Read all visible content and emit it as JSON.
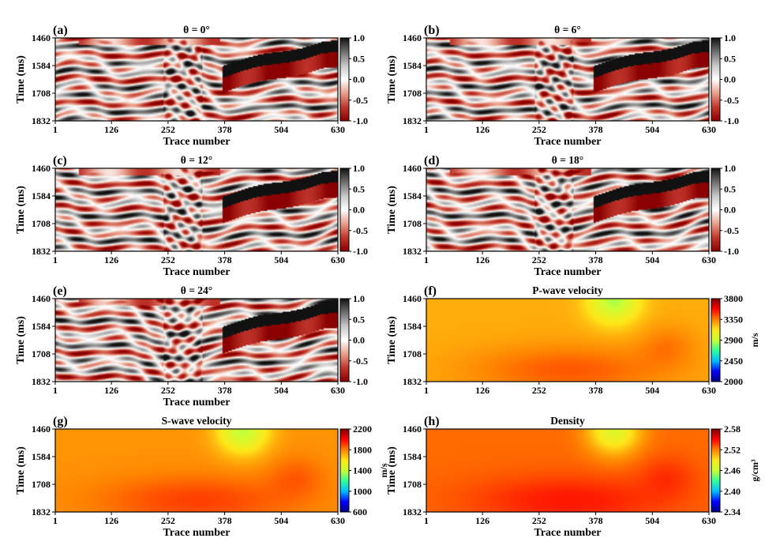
{
  "figure": {
    "panels_note": "8 panels: 5 seismic angle gathers and 3 elastic models"
  },
  "colors": {
    "seismic_colormap": [
      "#8b0000",
      "#c0362c",
      "#e8a08c",
      "#ffffff",
      "#c8c8c8",
      "#6e6e6e",
      "#111111"
    ],
    "jet_colormap": [
      "#00007f",
      "#0000ff",
      "#00bfff",
      "#33ff99",
      "#ccff33",
      "#ffe619",
      "#ff8000",
      "#ff0000",
      "#7f0000"
    ]
  },
  "chart_data": [
    {
      "type": "heatmap",
      "label": "(a)",
      "title": "θ = 0°",
      "xlabel": "Trace number",
      "ylabel": "Time (ms)",
      "xticks": [
        "1",
        "126",
        "252",
        "378",
        "504",
        "630"
      ],
      "xlim": [
        1,
        630
      ],
      "yticks": [
        "1460",
        "1584",
        "1708",
        "1832"
      ],
      "ylim": [
        1460,
        1832
      ],
      "colorbar": {
        "ticks": [
          "1.0",
          "0.5",
          "0.0",
          "-0.5",
          "-1.0"
        ],
        "range": [
          -1.0,
          1.0
        ],
        "unit": "",
        "colormap": "seismic"
      },
      "seed": 1
    },
    {
      "type": "heatmap",
      "label": "(b)",
      "title": "θ = 6°",
      "xlabel": "Trace number",
      "ylabel": "Time (ms)",
      "xticks": [
        "1",
        "126",
        "252",
        "378",
        "504",
        "630"
      ],
      "xlim": [
        1,
        630
      ],
      "yticks": [
        "1460",
        "1584",
        "1708",
        "1832"
      ],
      "ylim": [
        1460,
        1832
      ],
      "colorbar": {
        "ticks": [
          "1.0",
          "0.5",
          "0.0",
          "-0.5",
          "-1.0"
        ],
        "range": [
          -1.0,
          1.0
        ],
        "unit": "",
        "colormap": "seismic"
      },
      "seed": 2
    },
    {
      "type": "heatmap",
      "label": "(c)",
      "title": "θ = 12°",
      "xlabel": "Trace number",
      "ylabel": "Time (ms)",
      "xticks": [
        "1",
        "126",
        "252",
        "378",
        "504",
        "630"
      ],
      "xlim": [
        1,
        630
      ],
      "yticks": [
        "1460",
        "1584",
        "1708",
        "1832"
      ],
      "ylim": [
        1460,
        1832
      ],
      "colorbar": {
        "ticks": [
          "1.0",
          "0.5",
          "0.0",
          "-0.5",
          "-1.0"
        ],
        "range": [
          -1.0,
          1.0
        ],
        "unit": "",
        "colormap": "seismic"
      },
      "seed": 3
    },
    {
      "type": "heatmap",
      "label": "(d)",
      "title": "θ = 18°",
      "xlabel": "Trace number",
      "ylabel": "Time (ms)",
      "xticks": [
        "1",
        "126",
        "252",
        "378",
        "504",
        "630"
      ],
      "xlim": [
        1,
        630
      ],
      "yticks": [
        "1460",
        "1584",
        "1708",
        "1832"
      ],
      "ylim": [
        1460,
        1832
      ],
      "colorbar": {
        "ticks": [
          "1.0",
          "0.5",
          "0.0",
          "-0.5",
          "-1.0"
        ],
        "range": [
          -1.0,
          1.0
        ],
        "unit": "",
        "colormap": "seismic"
      },
      "seed": 4
    },
    {
      "type": "heatmap",
      "label": "(e)",
      "title": "θ = 24°",
      "xlabel": "Trace number",
      "ylabel": "Time (ms)",
      "xticks": [
        "1",
        "126",
        "252",
        "378",
        "504",
        "630"
      ],
      "xlim": [
        1,
        630
      ],
      "yticks": [
        "1460",
        "1584",
        "1708",
        "1832"
      ],
      "ylim": [
        1460,
        1832
      ],
      "colorbar": {
        "ticks": [
          "1.0",
          "0.5",
          "0.0",
          "-0.5",
          "-1.0"
        ],
        "range": [
          -1.0,
          1.0
        ],
        "unit": "",
        "colormap": "seismic"
      },
      "seed": 5
    },
    {
      "type": "heatmap",
      "label": "(f)",
      "title": "P-wave velocity",
      "xlabel": "",
      "ylabel": "Time (ms)",
      "xticks": [
        "1",
        "126",
        "252",
        "378",
        "504",
        "630"
      ],
      "xlim": [
        1,
        630
      ],
      "yticks": [
        "1460",
        "1584",
        "1708",
        "1832"
      ],
      "ylim": [
        1460,
        1832
      ],
      "colorbar": {
        "ticks": [
          "3800",
          "3350",
          "2900",
          "2450",
          "2000"
        ],
        "range": [
          2000,
          3800
        ],
        "unit": "m/s",
        "colormap": "jet"
      },
      "model_background": 3250,
      "model_low": 2850,
      "model_high": 3420
    },
    {
      "type": "heatmap",
      "label": "(g)",
      "title": "S-wave velocity",
      "xlabel": "Trace number",
      "ylabel": "Time (ms)",
      "xticks": [
        "1",
        "126",
        "252",
        "378",
        "504",
        "630"
      ],
      "xlim": [
        1,
        630
      ],
      "yticks": [
        "1460",
        "1584",
        "1708",
        "1832"
      ],
      "ylim": [
        1460,
        1832
      ],
      "colorbar": {
        "ticks": [
          "2200",
          "1800",
          "1400",
          "1000",
          "600"
        ],
        "range": [
          600,
          2200
        ],
        "unit": "m/s",
        "colormap": "jet"
      },
      "model_background": 1760,
      "model_low": 1380,
      "model_high": 1900
    },
    {
      "type": "heatmap",
      "label": "(h)",
      "title": "Density",
      "xlabel": "Trace number",
      "ylabel": "Time (ms)",
      "xticks": [
        "1",
        "126",
        "252",
        "378",
        "504",
        "630"
      ],
      "xlim": [
        1,
        630
      ],
      "yticks": [
        "1460",
        "1584",
        "1708",
        "1832"
      ],
      "ylim": [
        1460,
        1832
      ],
      "colorbar": {
        "ticks": [
          "2.58",
          "2.52",
          "2.46",
          "2.40",
          "2.34"
        ],
        "range": [
          2.34,
          2.58
        ],
        "unit": "g/cm³",
        "colormap": "jet"
      },
      "model_background": 2.525,
      "model_low": 2.47,
      "model_high": 2.545
    }
  ]
}
